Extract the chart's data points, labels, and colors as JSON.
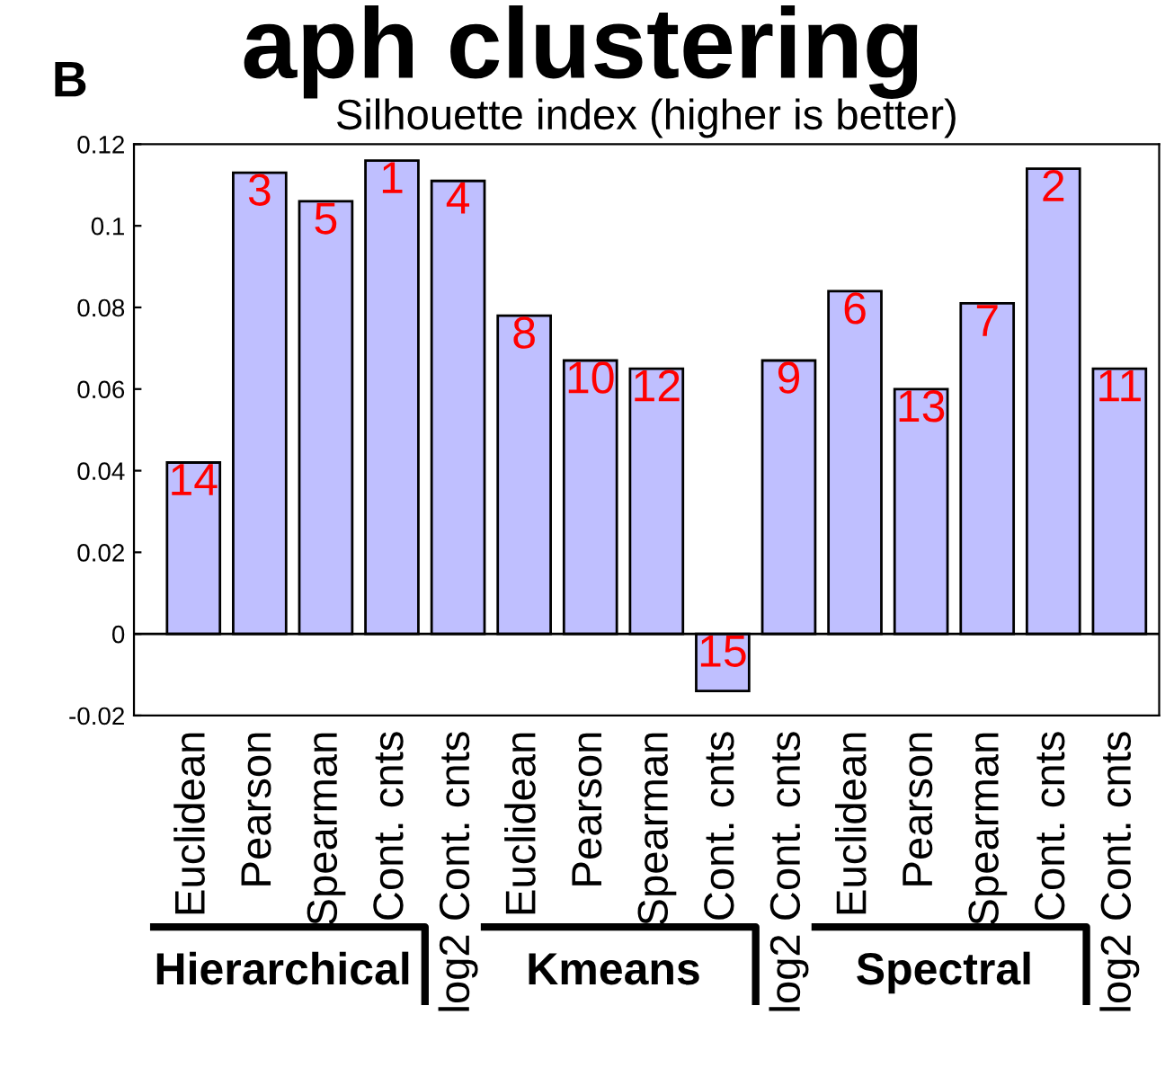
{
  "chart_data": {
    "type": "bar",
    "title": "Silhouette index (higher is better)",
    "categories": [
      "Euclidean",
      "Pearson",
      "Spearman",
      "Cont. cnts",
      "log2 Cont. cnts",
      "Euclidean",
      "Pearson",
      "Spearman",
      "Cont. cnts",
      "log2 Cont. cnts",
      "Euclidean",
      "Pearson",
      "Spearman",
      "Cont. cnts",
      "log2 Cont. cnts"
    ],
    "values": [
      0.042,
      0.113,
      0.106,
      0.116,
      0.111,
      0.078,
      0.067,
      0.065,
      -0.014,
      0.067,
      0.084,
      0.06,
      0.081,
      0.114,
      0.065
    ],
    "ref_lines": [
      {
        "axis": "y",
        "value": 0,
        "color": "#000000"
      }
    ],
    "color": "#bfbfff",
    "ylim": [
      -0.02,
      0.12
    ],
    "yticks": [
      -0.02,
      0,
      0.02,
      0.04,
      0.06,
      0.08,
      0.1,
      0.12
    ],
    "annotations": [
      "B",
      "aph clustering",
      "Hierarchical",
      "Kmeans",
      "Spectral",
      "14",
      "3",
      "5",
      "1",
      "4",
      "8",
      "10",
      "12",
      "15",
      "9",
      "6",
      "13",
      "7",
      "2",
      "11"
    ],
    "grid": false,
    "legend": false
  }
}
